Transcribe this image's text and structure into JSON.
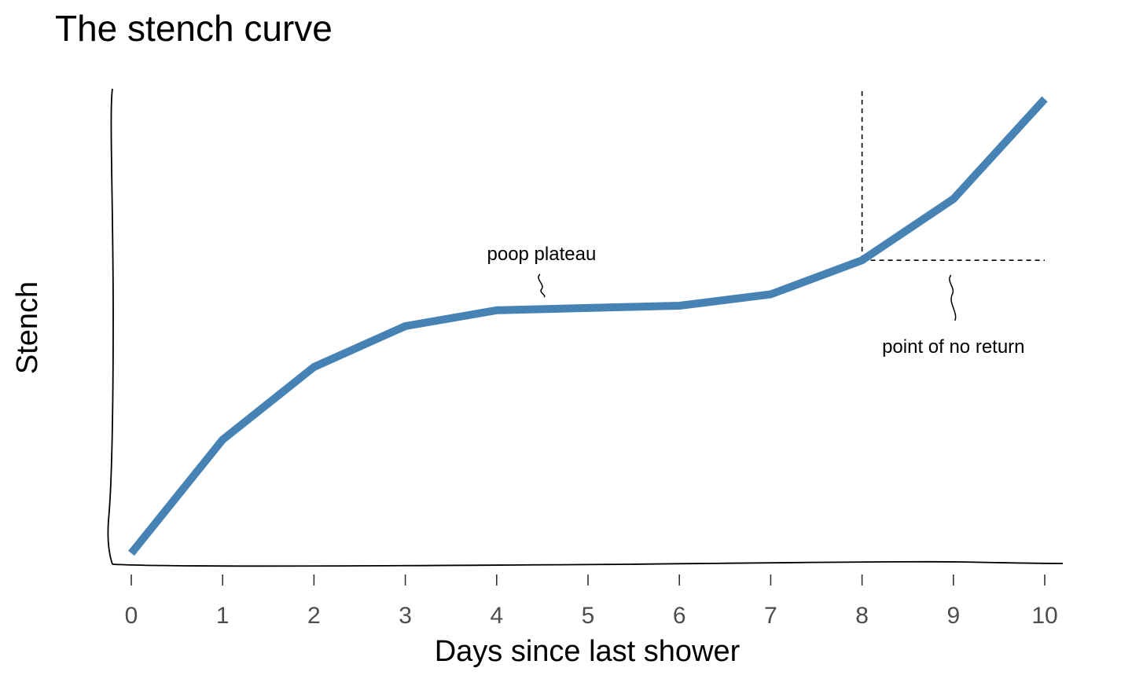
{
  "chart_data": {
    "type": "line",
    "title": "The stench curve",
    "xlabel": "Days since last shower",
    "ylabel": "Stench",
    "x": [
      0,
      1,
      2,
      3,
      4,
      5,
      6,
      7,
      8,
      9,
      10
    ],
    "y": [
      0.0,
      0.25,
      0.41,
      0.5,
      0.535,
      0.54,
      0.545,
      0.57,
      0.645,
      0.78,
      1.0
    ],
    "xlim": [
      -0.2,
      10.2
    ],
    "ylim": [
      0,
      1
    ],
    "x_ticks": [
      "0",
      "1",
      "2",
      "3",
      "4",
      "5",
      "6",
      "7",
      "8",
      "9",
      "10"
    ],
    "y_ticks_shown": false,
    "grid": false,
    "line_color": "#4682b4",
    "axis_style": "hand-drawn",
    "annotations": [
      {
        "text": "poop plateau",
        "x": 4.5,
        "y": 0.535
      },
      {
        "text": "point of no return",
        "x": 8,
        "y": 0.645,
        "reference_lines": "dashed"
      }
    ]
  }
}
